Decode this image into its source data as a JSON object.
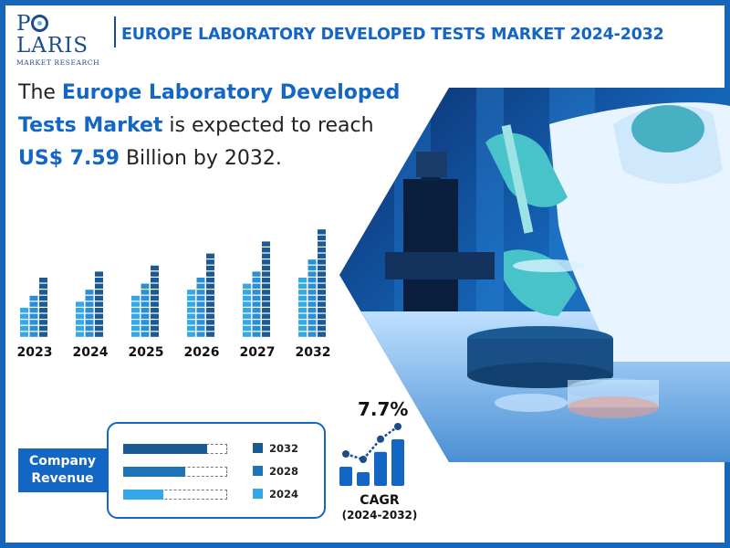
{
  "brand": {
    "name_prefix": "P",
    "name_rest": "LARIS",
    "tagline": "MARKET RESEARCH"
  },
  "title": "EUROPE LABORATORY DEVELOPED TESTS MARKET 2024-2032",
  "headline": {
    "part1": "The ",
    "highlight1": "Europe Laboratory Developed Tests Market",
    "part2": " is expected to reach ",
    "highlight2": "US$ 7.59",
    "part3": " Billion by 2032."
  },
  "colors": {
    "dark_blue": "#1b5a94",
    "mid_blue": "#2b8fd6",
    "light_blue": "#35a8e8",
    "accent": "#1466c4"
  },
  "chart_data": {
    "type": "bar",
    "categories": [
      "2023",
      "2024",
      "2025",
      "2026",
      "2027",
      "2032"
    ],
    "series": [
      {
        "values": [
          5,
          6,
          7,
          8,
          9,
          10
        ]
      },
      {
        "values": [
          7,
          8,
          9,
          10,
          11,
          13
        ]
      },
      {
        "values": [
          10,
          11,
          12,
          14,
          16,
          18
        ]
      }
    ]
  },
  "company_revenue": {
    "label": "Company Revenue",
    "bars": [
      {
        "year": "2032",
        "fraction": 0.81,
        "color": "#1b5a94"
      },
      {
        "year": "2028",
        "fraction": 0.6,
        "color": "#1e74b8"
      },
      {
        "year": "2024",
        "fraction": 0.39,
        "color": "#35a8e8"
      }
    ]
  },
  "cagr": {
    "value": "7.7%",
    "label": "CAGR",
    "period": "(2024-2032)",
    "bars": [
      0.35,
      0.25,
      0.62,
      0.85
    ]
  },
  "photo": {
    "icon": "lab-scientist-photo"
  }
}
